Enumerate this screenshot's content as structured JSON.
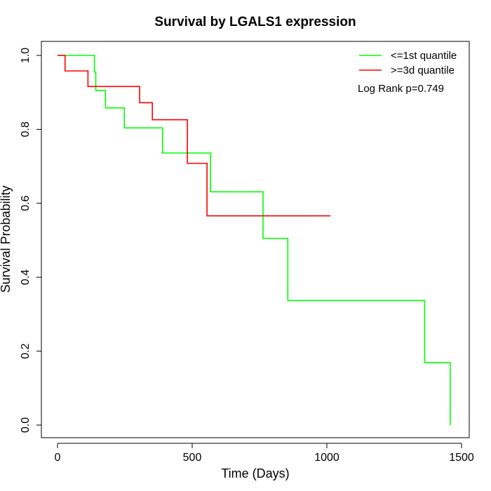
{
  "chart_data": {
    "type": "line",
    "title": "Survival by LGALS1 expression",
    "xlabel": "Time (Days)",
    "ylabel": "Survival Probability",
    "xlim": [
      0,
      1500
    ],
    "ylim": [
      0,
      1
    ],
    "x_ticks": [
      "0",
      "500",
      "1000",
      "1500"
    ],
    "y_ticks": [
      "0.0",
      "0.2",
      "0.4",
      "0.6",
      "0.8",
      "1.0"
    ],
    "annotation": "Log Rank p=0.749",
    "legend_position": "top-right",
    "grid": false,
    "series": [
      {
        "name": "<=1st quantile",
        "color": "#00ff00",
        "step_points": [
          [
            0,
            1.0
          ],
          [
            137,
            1.0
          ],
          [
            137,
            0.955
          ],
          [
            142,
            0.955
          ],
          [
            142,
            0.905
          ],
          [
            178,
            0.905
          ],
          [
            178,
            0.858
          ],
          [
            248,
            0.858
          ],
          [
            248,
            0.804
          ],
          [
            390,
            0.804
          ],
          [
            390,
            0.736
          ],
          [
            568,
            0.736
          ],
          [
            568,
            0.631
          ],
          [
            763,
            0.631
          ],
          [
            763,
            0.505
          ],
          [
            855,
            0.505
          ],
          [
            855,
            0.337
          ],
          [
            1363,
            0.337
          ],
          [
            1363,
            0.169
          ],
          [
            1458,
            0.169
          ],
          [
            1458,
            0.0
          ]
        ]
      },
      {
        "name": ">=3d quantile",
        "color": "#ff0000",
        "step_points": [
          [
            0,
            1.0
          ],
          [
            28,
            1.0
          ],
          [
            28,
            0.958
          ],
          [
            113,
            0.958
          ],
          [
            113,
            0.916
          ],
          [
            305,
            0.916
          ],
          [
            305,
            0.872
          ],
          [
            352,
            0.872
          ],
          [
            352,
            0.826
          ],
          [
            482,
            0.826
          ],
          [
            482,
            0.708
          ],
          [
            555,
            0.708
          ],
          [
            555,
            0.566
          ],
          [
            1013,
            0.566
          ]
        ]
      }
    ]
  }
}
